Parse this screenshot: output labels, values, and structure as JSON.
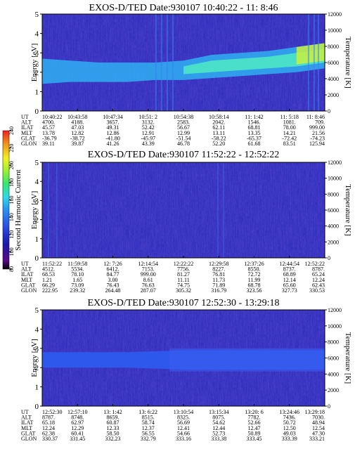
{
  "panels": [
    {
      "title": "EXOS-D/TED   Date:930107  10:40:22 - 11: 8:46",
      "ylabel": "Energy [eV]",
      "y2label": "Temperature [K]",
      "ephemeris": [
        [
          "UT",
          "10:40:22",
          "10:43:58",
          "10:47:34",
          "10:51: 2",
          "10:54:38",
          "10:58:14",
          "11: 1:42",
          "11: 5:18",
          "11: 8:46"
        ],
        [
          "ALT",
          "4700.",
          "4188.",
          "3657.",
          "3132.",
          "2583.",
          "2042.",
          "1546.",
          "1081.",
          "709."
        ],
        [
          "ILAT",
          "45.57",
          "47.03",
          "49.31",
          "52.42",
          "56.67",
          "62.11",
          "68.81",
          "78.00",
          "999.00"
        ],
        [
          "MLT",
          "13.78",
          "12.82",
          "12.86",
          "12.91",
          "12.99",
          "13.11",
          "13.35",
          "14.21",
          "21.56"
        ],
        [
          "GLAT",
          "-36.79",
          "-38.72",
          "-41.80",
          "-45.97",
          "-51.54",
          "-58.22",
          "-65.37",
          "-72.42",
          "-74.23"
        ],
        [
          "GLON",
          "39.11",
          "39.87",
          "41.26",
          "43.39",
          "46.78",
          "52.20",
          "61.68",
          "83.51",
          "125.94"
        ]
      ]
    },
    {
      "title": "EXOS-D/TED   Date:930107  11:52:22 - 12:52:22",
      "ylabel": "Energy [eV]",
      "y2label": "Temperature [K]",
      "ephemeris": [
        [
          "UT",
          "11:52:22",
          "11:59:58",
          "12: 7:26",
          "12:14:54",
          "12:22:22",
          "12:29:58",
          "12:37:26",
          "12:44:54",
          "12:52:22"
        ],
        [
          "ALT",
          "4512.",
          "5534.",
          "6412.",
          "7153.",
          "7756.",
          "8227.",
          "8550.",
          "8737.",
          "8787."
        ],
        [
          "ILAT",
          "68.53",
          "78.10",
          "84.77",
          "999.00",
          "81.27",
          "76.81",
          "72.72",
          "68.89",
          "65.24"
        ],
        [
          "MLT",
          "1.21",
          "1.65",
          "3.00",
          "8.61",
          "11.11",
          "11.73",
          "11.99",
          "12.14",
          "12.24"
        ],
        [
          "GLAT",
          "66.29",
          "73.09",
          "76.43",
          "76.63",
          "74.75",
          "71.89",
          "68.78",
          "65.60",
          "62.43"
        ],
        [
          "GLON",
          "222.95",
          "239.32",
          "264.48",
          "287.07",
          "305.32",
          "316.79",
          "323.56",
          "327.73",
          "330.53"
        ]
      ]
    },
    {
      "title": "EXOS-D/TED   Date:930107  12:52:30 - 13:29:18",
      "ylabel": "Energy [eV]",
      "y2label": "Temperature [K]",
      "ephemeris": [
        [
          "UT",
          "12:52:30",
          "12:57:10",
          "13: 1:42",
          "13: 6:22",
          "13:10:54",
          "13:15:34",
          "13:20: 6",
          "13:24:46",
          "13:29:18"
        ],
        [
          "ALT",
          "8787.",
          "8748.",
          "8659.",
          "8515.",
          "8325.",
          "8075.",
          "7782.",
          "7436.",
          "7030."
        ],
        [
          "ILAT",
          "65.18",
          "62.97",
          "60.87",
          "58.74",
          "56.69",
          "54.62",
          "52.66",
          "50.72",
          "48.94"
        ],
        [
          "MLT",
          "12.24",
          "12.29",
          "12.33",
          "12.37",
          "12.41",
          "12.44",
          "12.47",
          "12.50",
          "12.54"
        ],
        [
          "GLAT",
          "62.38",
          "60.41",
          "58.50",
          "56.55",
          "54.66",
          "52.73",
          "50.89",
          "49.03",
          "47.30"
        ],
        [
          "GLON",
          "330.37",
          "331.45",
          "332.23",
          "332.79",
          "333.16",
          "333.38",
          "333.45",
          "333.39",
          "333.21"
        ]
      ]
    }
  ],
  "colorbar": {
    "label": "Second Harmonic Current",
    "ticks": [
      "80",
      "100",
      "120",
      "140",
      "160",
      "180",
      "200",
      "220",
      "240"
    ],
    "colors": [
      "#000000",
      "#5a0a82",
      "#1a1aa8",
      "#2a4ae0",
      "#2a8cf0",
      "#30d8e8",
      "#38e86a",
      "#a8f030",
      "#f0f028",
      "#f09a20",
      "#f02020"
    ]
  },
  "chart_data": [
    {
      "type": "heatmap",
      "title": "EXOS-D/TED   Date:930107  10:40:22 - 11: 8:46",
      "ylabel": "Energy [eV]",
      "y2label": "Temperature [K]",
      "ylim": [
        0,
        5
      ],
      "y2lim": [
        0,
        12000
      ],
      "yticks": [
        0,
        1,
        2,
        3,
        4,
        5
      ],
      "y2ticks": [
        0,
        2000,
        4000,
        6000,
        8000,
        10000,
        12000
      ],
      "band_energy_eV": [
        {
          "x": 0.0,
          "lo": 1.4,
          "hi": 2.7
        },
        {
          "x": 0.1,
          "lo": 1.5,
          "hi": 2.6
        },
        {
          "x": 0.2,
          "lo": 1.5,
          "hi": 2.5
        },
        {
          "x": 0.3,
          "lo": 1.5,
          "hi": 2.5
        },
        {
          "x": 0.4,
          "lo": 1.6,
          "hi": 2.5
        },
        {
          "x": 0.5,
          "lo": 1.6,
          "hi": 2.6
        },
        {
          "x": 0.6,
          "lo": 1.7,
          "hi": 2.9
        },
        {
          "x": 0.7,
          "lo": 1.8,
          "hi": 3.0
        },
        {
          "x": 0.8,
          "lo": 1.9,
          "hi": 3.1
        },
        {
          "x": 0.9,
          "lo": 2.0,
          "hi": 3.3
        },
        {
          "x": 1.0,
          "lo": 2.2,
          "hi": 3.5
        }
      ]
    },
    {
      "type": "heatmap",
      "title": "EXOS-D/TED   Date:930107  11:52:22 - 12:52:22",
      "ylabel": "Energy [eV]",
      "y2label": "Temperature [K]",
      "ylim": [
        0,
        5
      ],
      "y2lim": [
        0,
        12000
      ],
      "yticks": [
        0,
        1,
        2,
        3,
        4,
        5
      ],
      "y2ticks": [
        0,
        2000,
        4000,
        6000,
        8000,
        10000,
        12000
      ]
    },
    {
      "type": "heatmap",
      "title": "EXOS-D/TED   Date:930107  12:52:30 - 13:29:18",
      "ylabel": "Energy [eV]",
      "y2label": "Temperature [K]",
      "ylim": [
        0,
        5
      ],
      "y2lim": [
        0,
        12000
      ],
      "yticks": [
        0,
        1,
        2,
        3,
        4,
        5
      ],
      "y2ticks": [
        0,
        2000,
        4000,
        6000,
        8000,
        10000,
        12000
      ],
      "band_energy_eV": [
        {
          "x": 0.0,
          "lo": 2.0,
          "hi": 2.8
        },
        {
          "x": 0.3,
          "lo": 2.0,
          "hi": 2.8
        },
        {
          "x": 0.5,
          "lo": 1.9,
          "hi": 2.9
        },
        {
          "x": 0.7,
          "lo": 1.9,
          "hi": 2.9
        },
        {
          "x": 1.0,
          "lo": 1.9,
          "hi": 2.9
        }
      ]
    }
  ]
}
